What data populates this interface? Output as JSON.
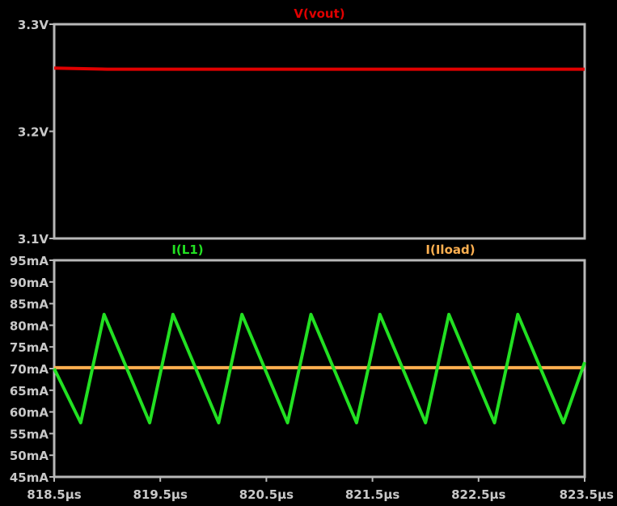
{
  "chart_data": [
    {
      "type": "line",
      "x_unit": "µs",
      "ylim": [
        3.1,
        3.3
      ],
      "y_ticks": [
        "3.3V",
        "3.2V",
        "3.1V"
      ],
      "grid": false,
      "series": [
        {
          "name": "V(vout)",
          "color": "#e00000",
          "x": [
            818.5,
            819.0,
            819.5,
            820.0,
            820.5,
            821.0,
            821.5,
            822.0,
            822.5,
            823.0,
            823.5
          ],
          "values": [
            3.259,
            3.258,
            3.258,
            3.258,
            3.258,
            3.258,
            3.258,
            3.258,
            3.258,
            3.258,
            3.258
          ]
        }
      ]
    },
    {
      "type": "line",
      "x_unit": "µs",
      "xlim": [
        818.5,
        823.5
      ],
      "x_ticks": [
        "818.5µs",
        "819.5µs",
        "820.5µs",
        "821.5µs",
        "822.5µs",
        "823.5µs"
      ],
      "ylim": [
        45,
        95
      ],
      "y_ticks": [
        "95mA",
        "90mA",
        "85mA",
        "80mA",
        "75mA",
        "70mA",
        "65mA",
        "60mA",
        "55mA",
        "50mA",
        "45mA"
      ],
      "grid": false,
      "series": [
        {
          "name": "I(L1)",
          "color": "#22e022",
          "x": [
            818.5,
            818.75,
            818.97,
            819.4,
            819.62,
            820.05,
            820.27,
            820.7,
            820.92,
            821.35,
            821.57,
            822.0,
            822.22,
            822.65,
            822.87,
            823.3,
            823.5
          ],
          "values": [
            70,
            57.5,
            82.5,
            57.5,
            82.5,
            57.5,
            82.5,
            57.5,
            82.5,
            57.5,
            82.5,
            57.5,
            82.5,
            57.5,
            82.5,
            57.5,
            71.5
          ]
        },
        {
          "name": "I(Iload)",
          "color": "#ffb050",
          "x": [
            818.5,
            823.5
          ],
          "values": [
            70.2,
            70.2
          ]
        }
      ]
    }
  ]
}
